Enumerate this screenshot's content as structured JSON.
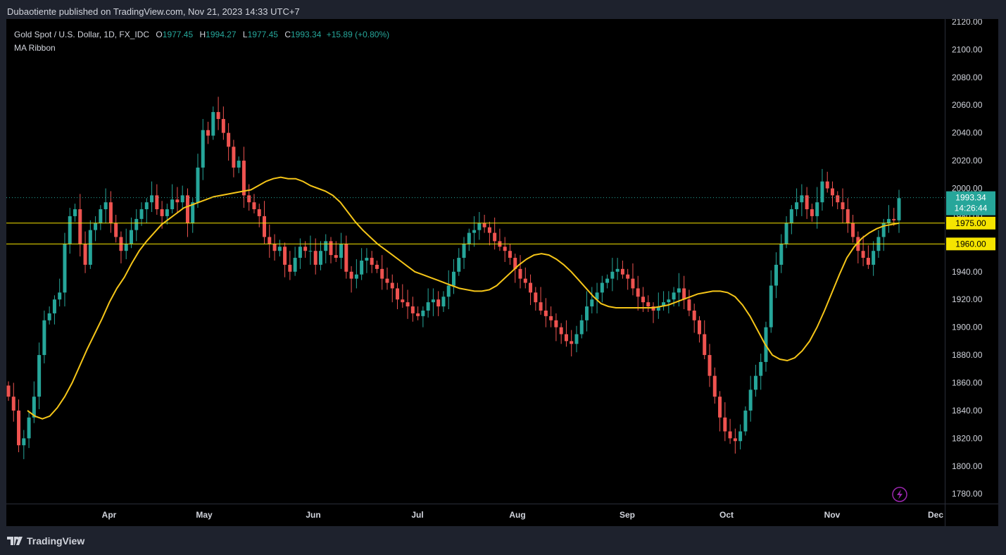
{
  "header": {
    "published_text": "Dubaotiente published on TradingView.com, Nov 21, 2023 14:33 UTC+7"
  },
  "legend": {
    "symbol_line": "Gold Spot / U.S. Dollar, 1D, FX_IDC",
    "o_label": "O",
    "o_value": "1977.45",
    "h_label": "H",
    "h_value": "1994.27",
    "l_label": "L",
    "l_value": "1977.45",
    "c_label": "C",
    "c_value": "1993.34",
    "change": "+15.89 (+0.80%)",
    "indicator": "MA Ribbon"
  },
  "footer": {
    "brand": "TradingView"
  },
  "colors": {
    "up": "#26a69a",
    "down": "#ef5350",
    "ma": "#f5c518",
    "hline": "#f5e400",
    "background": "#000000",
    "axis_text": "#d1d4dc"
  },
  "chart_data": {
    "type": "candlestick",
    "x_labels": [
      "Apr",
      "May",
      "Jun",
      "Jul",
      "Aug",
      "Sep",
      "Oct",
      "Nov",
      "Dec"
    ],
    "y_ticks": [
      "2120.00",
      "2100.00",
      "2080.00",
      "2060.00",
      "2040.00",
      "2020.00",
      "2000.00",
      "1980.00",
      "1960.00",
      "1940.00",
      "1920.00",
      "1900.00",
      "1880.00",
      "1860.00",
      "1840.00",
      "1820.00",
      "1800.00",
      "1780.00"
    ],
    "ylim": [
      1773,
      2122
    ],
    "price_label": {
      "value": "1993.34",
      "countdown": "14:26:44"
    },
    "horizontal_levels": [
      {
        "value": 1975.0,
        "label": "1975.00"
      },
      {
        "value": 1960.0,
        "label": "1960.00"
      }
    ],
    "candles_close": [
      1850,
      1840,
      1815,
      1820,
      1835,
      1850,
      1880,
      1905,
      1910,
      1920,
      1925,
      1960,
      1980,
      1985,
      1960,
      1945,
      1970,
      1975,
      1985,
      1990,
      1975,
      1965,
      1955,
      1960,
      1970,
      1978,
      1985,
      1990,
      1995,
      1985,
      1980,
      1985,
      1992,
      1990,
      1995,
      1975,
      1990,
      2015,
      2042,
      2038,
      2055,
      2050,
      2040,
      2030,
      2015,
      2020,
      1995,
      1990,
      1985,
      1980,
      1965,
      1960,
      1955,
      1958,
      1945,
      1940,
      1950,
      1958,
      1955,
      1955,
      1945,
      1955,
      1962,
      1952,
      1950,
      1960,
      1940,
      1935,
      1938,
      1948,
      1950,
      1945,
      1942,
      1935,
      1932,
      1928,
      1920,
      1918,
      1915,
      1910,
      1908,
      1912,
      1918,
      1920,
      1915,
      1922,
      1930,
      1940,
      1950,
      1960,
      1968,
      1970,
      1975,
      1972,
      1968,
      1962,
      1958,
      1955,
      1950,
      1942,
      1935,
      1932,
      1925,
      1918,
      1912,
      1908,
      1905,
      1900,
      1895,
      1890,
      1888,
      1895,
      1905,
      1915,
      1920,
      1925,
      1932,
      1935,
      1940,
      1942,
      1938,
      1935,
      1928,
      1922,
      1918,
      1915,
      1912,
      1915,
      1918,
      1920,
      1925,
      1928,
      1920,
      1912,
      1905,
      1895,
      1880,
      1865,
      1850,
      1835,
      1825,
      1820,
      1818,
      1825,
      1840,
      1855,
      1865,
      1875,
      1900,
      1930,
      1945,
      1960,
      1975,
      1985,
      1990,
      1995,
      1985,
      1980,
      1990,
      2005,
      2000,
      1995,
      1990,
      1985,
      1975,
      1965,
      1955,
      1950,
      1945,
      1955,
      1965,
      1975,
      1978,
      1977,
      1993
    ],
    "series": [
      {
        "name": "MA Ribbon",
        "values": [
          1840,
          1836,
          1834,
          1836,
          1842,
          1850,
          1860,
          1872,
          1884,
          1895,
          1906,
          1918,
          1928,
          1936,
          1946,
          1955,
          1962,
          1968,
          1974,
          1978,
          1982,
          1986,
          1988,
          1990,
          1992,
          1994,
          1995,
          1996,
          1997,
          1998,
          1999,
          2002,
          2005,
          2007,
          2008,
          2007,
          2007,
          2005,
          2002,
          2000,
          1998,
          1995,
          1990,
          1983,
          1976,
          1970,
          1965,
          1960,
          1956,
          1952,
          1948,
          1944,
          1940,
          1938,
          1936,
          1934,
          1932,
          1930,
          1928,
          1927,
          1926,
          1926,
          1927,
          1930,
          1935,
          1940,
          1945,
          1949,
          1952,
          1953,
          1952,
          1949,
          1945,
          1940,
          1934,
          1928,
          1922,
          1917,
          1915,
          1914,
          1914,
          1914,
          1914,
          1914,
          1914,
          1915,
          1916,
          1918,
          1920,
          1922,
          1924,
          1925,
          1926,
          1926,
          1925,
          1922,
          1916,
          1908,
          1898,
          1888,
          1880,
          1877,
          1876,
          1878,
          1883,
          1890,
          1900,
          1912,
          1925,
          1938,
          1950,
          1958,
          1964,
          1968,
          1971,
          1973,
          1974,
          1975
        ]
      }
    ]
  }
}
